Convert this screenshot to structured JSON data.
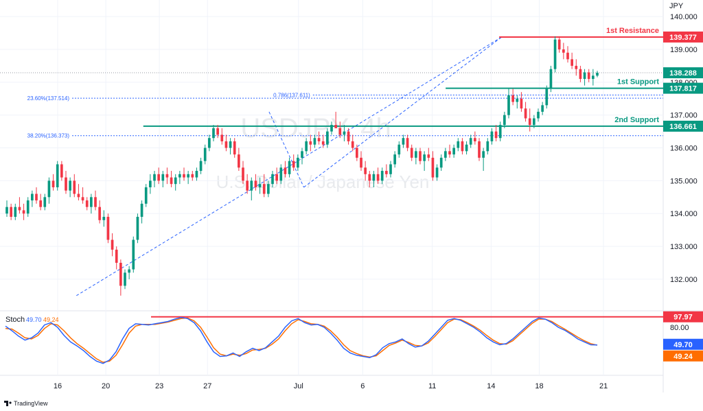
{
  "chart_data": {
    "type": "candlestick",
    "currency_label": "JPY",
    "symbol_watermark": "USDJPY, 4h",
    "name_watermark": "U.S. Dollar / Japanese Yen",
    "price_axis": {
      "ylim": [
        131.1,
        140.4
      ],
      "ticks": [
        132.0,
        133.0,
        134.0,
        135.0,
        136.0,
        137.0,
        138.0,
        139.0,
        140.0
      ],
      "tick_labels": [
        "132.000",
        "133.000",
        "134.000",
        "135.000",
        "136.000",
        "137.000",
        "138.000",
        "139.000",
        "140.000"
      ]
    },
    "time_axis": {
      "labels": [
        "16",
        "20",
        "23",
        "27",
        "Jul",
        "6",
        "11",
        "14",
        "18",
        "21"
      ],
      "label_bar_index": [
        20,
        38,
        58,
        76,
        110,
        134,
        160,
        182,
        200,
        224
      ],
      "total_slots": 232
    },
    "levels": [
      {
        "name": "1st Resistance",
        "value": 139.377,
        "value_label": "139.377",
        "color": "#f23645",
        "from_bar": 185
      },
      {
        "name": "1st Support",
        "value": 137.817,
        "value_label": "137.817",
        "color": "#089981",
        "from_bar": 165
      },
      {
        "name": "2nd Support",
        "value": 136.661,
        "value_label": "136.661",
        "color": "#089981",
        "from_bar": 52
      }
    ],
    "fibonacci": [
      {
        "label": "23.60%(137.514)",
        "value": 137.514,
        "from_bar": 10
      },
      {
        "label": "38.20%(136.373)",
        "value": 136.373,
        "from_bar": 10
      },
      {
        "label": "0.786(137.611)",
        "value": 137.611,
        "from_bar": 100
      }
    ],
    "last_price": {
      "value": 138.288,
      "label": "138.288"
    },
    "trendlines": [
      {
        "from": [
          27,
          131.5
        ],
        "to": [
          186,
          139.38
        ]
      },
      {
        "from": [
          112,
          134.8
        ],
        "to": [
          186,
          139.38
        ]
      },
      {
        "from": [
          99,
          137.1
        ],
        "to": [
          112,
          134.8
        ]
      }
    ],
    "candles": [
      [
        134.0,
        134.4,
        133.9,
        134.2
      ],
      [
        134.2,
        134.3,
        133.8,
        133.9
      ],
      [
        133.9,
        134.3,
        133.8,
        134.2
      ],
      [
        134.2,
        134.5,
        134.0,
        134.1
      ],
      [
        134.1,
        134.3,
        133.8,
        134.0
      ],
      [
        134.0,
        134.5,
        133.9,
        134.4
      ],
      [
        134.4,
        134.7,
        134.2,
        134.6
      ],
      [
        134.6,
        134.8,
        134.3,
        134.4
      ],
      [
        134.4,
        134.6,
        134.1,
        134.2
      ],
      [
        134.2,
        134.6,
        134.1,
        134.5
      ],
      [
        134.5,
        135.1,
        134.3,
        135.0
      ],
      [
        135.0,
        135.2,
        134.7,
        134.8
      ],
      [
        134.8,
        135.6,
        134.7,
        135.5
      ],
      [
        135.5,
        135.6,
        135.0,
        135.1
      ],
      [
        135.1,
        135.3,
        134.6,
        134.7
      ],
      [
        134.7,
        135.1,
        134.5,
        135.0
      ],
      [
        135.0,
        135.2,
        134.5,
        134.6
      ],
      [
        134.6,
        134.9,
        134.4,
        134.5
      ],
      [
        134.5,
        134.8,
        134.3,
        134.4
      ],
      [
        134.4,
        134.5,
        134.1,
        134.2
      ],
      [
        134.2,
        134.6,
        134.0,
        134.5
      ],
      [
        134.5,
        134.7,
        134.1,
        134.2
      ],
      [
        134.2,
        134.4,
        133.7,
        133.8
      ],
      [
        133.8,
        134.1,
        133.6,
        133.9
      ],
      [
        133.9,
        134.0,
        133.1,
        133.2
      ],
      [
        133.2,
        133.4,
        132.7,
        132.9
      ],
      [
        132.9,
        133.0,
        132.3,
        132.5
      ],
      [
        132.5,
        132.6,
        131.5,
        131.8
      ],
      [
        131.8,
        132.3,
        131.7,
        132.2
      ],
      [
        132.2,
        132.4,
        132.0,
        132.3
      ],
      [
        132.3,
        133.3,
        132.2,
        133.2
      ],
      [
        133.2,
        134.0,
        133.1,
        133.9
      ],
      [
        133.9,
        134.4,
        133.7,
        134.3
      ],
      [
        134.3,
        134.9,
        134.2,
        134.8
      ],
      [
        134.8,
        135.2,
        134.6,
        135.0
      ],
      [
        135.0,
        135.3,
        134.8,
        135.2
      ],
      [
        135.2,
        135.4,
        134.9,
        135.0
      ],
      [
        135.0,
        135.3,
        134.8,
        135.2
      ],
      [
        135.2,
        135.4,
        134.9,
        135.1
      ],
      [
        135.1,
        135.3,
        134.8,
        134.9
      ],
      [
        134.9,
        135.2,
        134.7,
        135.1
      ],
      [
        135.1,
        135.3,
        134.9,
        135.2
      ],
      [
        135.2,
        135.4,
        135.0,
        135.1
      ],
      [
        135.1,
        135.3,
        134.9,
        135.2
      ],
      [
        135.2,
        135.3,
        135.0,
        135.1
      ],
      [
        135.1,
        135.4,
        135.0,
        135.3
      ],
      [
        135.3,
        135.7,
        135.2,
        135.6
      ],
      [
        135.6,
        136.1,
        135.5,
        136.0
      ],
      [
        136.0,
        136.4,
        135.9,
        136.3
      ],
      [
        136.3,
        136.7,
        136.2,
        136.6
      ],
      [
        136.6,
        136.7,
        136.3,
        136.4
      ],
      [
        136.4,
        136.6,
        136.1,
        136.2
      ],
      [
        136.2,
        136.4,
        135.9,
        136.0
      ],
      [
        136.0,
        136.3,
        135.8,
        136.2
      ],
      [
        136.2,
        136.3,
        135.7,
        135.8
      ],
      [
        135.8,
        136.0,
        135.3,
        135.4
      ],
      [
        135.4,
        135.6,
        134.9,
        135.0
      ],
      [
        135.0,
        135.2,
        134.6,
        134.7
      ],
      [
        134.7,
        135.1,
        134.4,
        135.0
      ],
      [
        135.0,
        135.2,
        134.7,
        134.8
      ],
      [
        134.8,
        135.1,
        134.6,
        134.9
      ],
      [
        134.9,
        135.2,
        134.5,
        134.6
      ],
      [
        134.6,
        135.0,
        134.5,
        134.9
      ],
      [
        134.9,
        135.3,
        134.8,
        135.2
      ],
      [
        135.2,
        135.4,
        134.9,
        135.0
      ],
      [
        135.0,
        135.5,
        134.9,
        135.4
      ],
      [
        135.4,
        135.6,
        135.1,
        135.2
      ],
      [
        135.2,
        135.7,
        135.1,
        135.6
      ],
      [
        135.6,
        135.8,
        135.3,
        135.4
      ],
      [
        135.4,
        135.8,
        135.3,
        135.7
      ],
      [
        135.7,
        136.0,
        135.5,
        135.9
      ],
      [
        135.9,
        136.3,
        135.8,
        136.2
      ],
      [
        136.2,
        136.4,
        135.9,
        136.1
      ],
      [
        136.1,
        136.4,
        136.0,
        136.3
      ],
      [
        136.3,
        136.5,
        136.1,
        136.2
      ],
      [
        136.2,
        136.4,
        136.0,
        136.1
      ],
      [
        136.1,
        136.6,
        136.0,
        136.5
      ],
      [
        136.5,
        136.8,
        136.4,
        136.7
      ],
      [
        136.7,
        137.1,
        136.6,
        136.6
      ],
      [
        136.6,
        136.8,
        136.3,
        136.4
      ],
      [
        136.4,
        136.7,
        136.2,
        136.5
      ],
      [
        136.5,
        136.6,
        136.1,
        136.2
      ],
      [
        136.2,
        136.4,
        135.9,
        136.0
      ],
      [
        136.0,
        136.1,
        135.6,
        135.7
      ],
      [
        135.7,
        135.9,
        135.3,
        135.4
      ],
      [
        135.4,
        135.6,
        135.0,
        135.2
      ],
      [
        135.2,
        135.3,
        134.8,
        135.0
      ],
      [
        135.0,
        135.3,
        134.8,
        135.2
      ],
      [
        135.2,
        135.4,
        134.9,
        135.0
      ],
      [
        135.0,
        135.4,
        134.9,
        135.3
      ],
      [
        135.3,
        135.5,
        135.1,
        135.2
      ],
      [
        135.2,
        135.6,
        135.1,
        135.5
      ],
      [
        135.5,
        135.9,
        135.4,
        135.8
      ],
      [
        135.8,
        136.2,
        135.7,
        136.1
      ],
      [
        136.1,
        136.4,
        136.0,
        136.3
      ],
      [
        136.3,
        136.4,
        135.9,
        136.0
      ],
      [
        136.0,
        136.1,
        135.6,
        135.7
      ],
      [
        135.7,
        136.0,
        135.5,
        135.9
      ],
      [
        135.9,
        136.0,
        135.5,
        135.6
      ],
      [
        135.6,
        135.9,
        135.3,
        135.8
      ],
      [
        135.8,
        136.0,
        135.6,
        135.7
      ],
      [
        135.7,
        135.9,
        135.0,
        135.1
      ],
      [
        135.1,
        135.5,
        135.0,
        135.4
      ],
      [
        135.4,
        135.8,
        135.3,
        135.7
      ],
      [
        135.7,
        136.0,
        135.6,
        135.9
      ],
      [
        135.9,
        136.1,
        135.7,
        135.8
      ],
      [
        135.8,
        136.1,
        135.7,
        136.0
      ],
      [
        136.0,
        136.3,
        135.9,
        136.2
      ],
      [
        136.2,
        136.3,
        135.8,
        135.9
      ],
      [
        135.9,
        136.2,
        135.8,
        136.1
      ],
      [
        136.1,
        136.4,
        136.0,
        136.3
      ],
      [
        136.3,
        136.5,
        136.1,
        136.2
      ],
      [
        136.2,
        136.3,
        135.6,
        135.7
      ],
      [
        135.7,
        136.0,
        135.3,
        135.9
      ],
      [
        135.9,
        136.3,
        135.8,
        136.2
      ],
      [
        136.2,
        136.6,
        136.1,
        136.5
      ],
      [
        136.5,
        136.7,
        136.2,
        136.3
      ],
      [
        136.3,
        136.8,
        136.2,
        136.7
      ],
      [
        136.7,
        137.1,
        136.6,
        137.0
      ],
      [
        137.0,
        137.8,
        136.9,
        137.6
      ],
      [
        137.6,
        137.8,
        137.3,
        137.4
      ],
      [
        137.4,
        137.6,
        137.2,
        137.5
      ],
      [
        137.5,
        137.7,
        137.1,
        137.2
      ],
      [
        137.2,
        137.4,
        136.8,
        136.9
      ],
      [
        136.9,
        137.2,
        136.5,
        136.7
      ],
      [
        136.7,
        137.0,
        136.6,
        136.9
      ],
      [
        136.9,
        137.2,
        136.8,
        137.1
      ],
      [
        137.1,
        137.4,
        137.0,
        137.3
      ],
      [
        137.3,
        137.9,
        137.2,
        137.8
      ],
      [
        137.8,
        138.5,
        137.7,
        138.4
      ],
      [
        138.4,
        139.4,
        138.3,
        139.3
      ],
      [
        139.3,
        139.4,
        138.9,
        139.0
      ],
      [
        139.0,
        139.2,
        138.7,
        138.9
      ],
      [
        138.9,
        139.1,
        138.6,
        138.7
      ],
      [
        138.7,
        138.9,
        138.4,
        138.5
      ],
      [
        138.5,
        138.7,
        138.2,
        138.4
      ],
      [
        138.4,
        138.5,
        138.0,
        138.1
      ],
      [
        138.1,
        138.4,
        137.9,
        138.3
      ],
      [
        138.3,
        138.4,
        138.0,
        138.1
      ],
      [
        138.1,
        138.4,
        137.9,
        138.2
      ],
      [
        138.2,
        138.35,
        138.15,
        138.29
      ]
    ],
    "stochastic": {
      "label": "Stoch",
      "k_label": "49.70",
      "d_label": "49.24",
      "k_value": 49.7,
      "d_value": 49.24,
      "k_color": "#2962ff",
      "d_color": "#ff6d00",
      "upper_label": "80.00",
      "upper_value": 80,
      "extreme_level": {
        "value": 97.97,
        "label": "97.97",
        "color": "#f23645"
      },
      "k": [
        82,
        74,
        65,
        58,
        62,
        70,
        84,
        88,
        80,
        66,
        55,
        48,
        40,
        30,
        22,
        18,
        24,
        38,
        60,
        78,
        86,
        85,
        84,
        86,
        88,
        90,
        94,
        97,
        95,
        88,
        74,
        55,
        38,
        30,
        31,
        36,
        30,
        38,
        44,
        40,
        45,
        55,
        65,
        80,
        91,
        95,
        88,
        84,
        85,
        80,
        70,
        58,
        44,
        36,
        32,
        30,
        28,
        33,
        45,
        52,
        55,
        60,
        52,
        46,
        48,
        56,
        68,
        80,
        92,
        95,
        92,
        86,
        80,
        72,
        62,
        55,
        50,
        52,
        60,
        70,
        80,
        90,
        96,
        94,
        88,
        80,
        75,
        68,
        60,
        55,
        50,
        49.7
      ],
      "d": [
        78,
        77,
        70,
        62,
        60,
        66,
        78,
        86,
        84,
        74,
        62,
        52,
        44,
        35,
        26,
        20,
        22,
        32,
        50,
        70,
        82,
        85,
        85,
        85,
        87,
        89,
        92,
        95,
        96,
        91,
        80,
        63,
        45,
        34,
        31,
        34,
        32,
        35,
        41,
        42,
        44,
        51,
        60,
        74,
        86,
        93,
        90,
        86,
        85,
        82,
        74,
        63,
        50,
        40,
        35,
        31,
        29,
        31,
        40,
        49,
        53,
        58,
        54,
        49,
        48,
        53,
        64,
        76,
        88,
        94,
        93,
        88,
        82,
        75,
        66,
        58,
        52,
        51,
        57,
        67,
        77,
        87,
        94,
        94,
        90,
        83,
        77,
        70,
        63,
        57,
        52,
        49.24
      ]
    }
  },
  "branding": {
    "logo_text": "TradingView"
  }
}
